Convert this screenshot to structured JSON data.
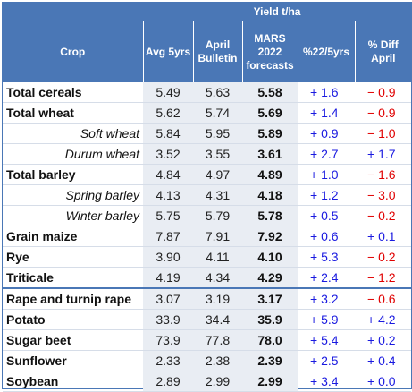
{
  "header": {
    "group": "Yield t/ha",
    "columns": [
      "Crop",
      "Avg 5yrs",
      "April\nBulletin",
      "MARS\n2022\nforecasts",
      "%22/5yrs",
      "% Diff\nApril"
    ]
  },
  "rows": [
    {
      "crop": "Total cereals",
      "sub": false,
      "avg": "5.49",
      "april": "5.63",
      "mars": "5.58",
      "pct5": "+ 1.6",
      "pct5_sign": "pos",
      "diff": "− 0.9",
      "diff_sign": "neg"
    },
    {
      "crop": "Total wheat",
      "sub": false,
      "avg": "5.62",
      "april": "5.74",
      "mars": "5.69",
      "pct5": "+ 1.4",
      "pct5_sign": "pos",
      "diff": "− 0.9",
      "diff_sign": "neg"
    },
    {
      "crop": "Soft wheat",
      "sub": true,
      "avg": "5.84",
      "april": "5.95",
      "mars": "5.89",
      "pct5": "+ 0.9",
      "pct5_sign": "pos",
      "diff": "− 1.0",
      "diff_sign": "neg"
    },
    {
      "crop": "Durum wheat",
      "sub": true,
      "avg": "3.52",
      "april": "3.55",
      "mars": "3.61",
      "pct5": "+ 2.7",
      "pct5_sign": "pos",
      "diff": "+ 1.7",
      "diff_sign": "pos"
    },
    {
      "crop": "Total barley",
      "sub": false,
      "avg": "4.84",
      "april": "4.97",
      "mars": "4.89",
      "pct5": "+ 1.0",
      "pct5_sign": "pos",
      "diff": "− 1.6",
      "diff_sign": "neg"
    },
    {
      "crop": "Spring barley",
      "sub": true,
      "avg": "4.13",
      "april": "4.31",
      "mars": "4.18",
      "pct5": "+ 1.2",
      "pct5_sign": "pos",
      "diff": "− 3.0",
      "diff_sign": "neg"
    },
    {
      "crop": "Winter barley",
      "sub": true,
      "avg": "5.75",
      "april": "5.79",
      "mars": "5.78",
      "pct5": "+ 0.5",
      "pct5_sign": "pos",
      "diff": "− 0.2",
      "diff_sign": "neg"
    },
    {
      "crop": "Grain maize",
      "sub": false,
      "avg": "7.87",
      "april": "7.91",
      "mars": "7.92",
      "pct5": "+ 0.6",
      "pct5_sign": "pos",
      "diff": "+ 0.1",
      "diff_sign": "pos"
    },
    {
      "crop": "Rye",
      "sub": false,
      "avg": "3.90",
      "april": "4.11",
      "mars": "4.10",
      "pct5": "+ 5.3",
      "pct5_sign": "pos",
      "diff": "− 0.2",
      "diff_sign": "neg"
    },
    {
      "crop": "Triticale",
      "sub": false,
      "avg": "4.19",
      "april": "4.34",
      "mars": "4.29",
      "pct5": "+ 2.4",
      "pct5_sign": "pos",
      "diff": "− 1.2",
      "diff_sign": "neg"
    },
    {
      "crop": "Rape and turnip rape",
      "sub": false,
      "avg": "3.07",
      "april": "3.19",
      "mars": "3.17",
      "pct5": "+ 3.2",
      "pct5_sign": "pos",
      "diff": "− 0.6",
      "diff_sign": "neg"
    },
    {
      "crop": "Potato",
      "sub": false,
      "avg": "33.9",
      "april": "34.4",
      "mars": "35.9",
      "pct5": "+ 5.9",
      "pct5_sign": "pos",
      "diff": "+ 4.2",
      "diff_sign": "pos"
    },
    {
      "crop": "Sugar beet",
      "sub": false,
      "avg": "73.9",
      "april": "77.8",
      "mars": "78.0",
      "pct5": "+ 5.4",
      "pct5_sign": "pos",
      "diff": "+ 0.2",
      "diff_sign": "pos"
    },
    {
      "crop": "Sunflower",
      "sub": false,
      "avg": "2.33",
      "april": "2.38",
      "mars": "2.39",
      "pct5": "+ 2.5",
      "pct5_sign": "pos",
      "diff": "+ 0.4",
      "diff_sign": "pos"
    },
    {
      "crop": "Soybean",
      "sub": false,
      "avg": "2.89",
      "april": "2.99",
      "mars": "2.99",
      "pct5": "+ 3.4",
      "pct5_sign": "pos",
      "diff": "+ 0.0",
      "diff_sign": "pos"
    }
  ],
  "colors": {
    "header_bg": "#4a77b6",
    "positive": "#1a1ae0",
    "negative": "#e00000",
    "cell_bg": "#e9edf3"
  }
}
